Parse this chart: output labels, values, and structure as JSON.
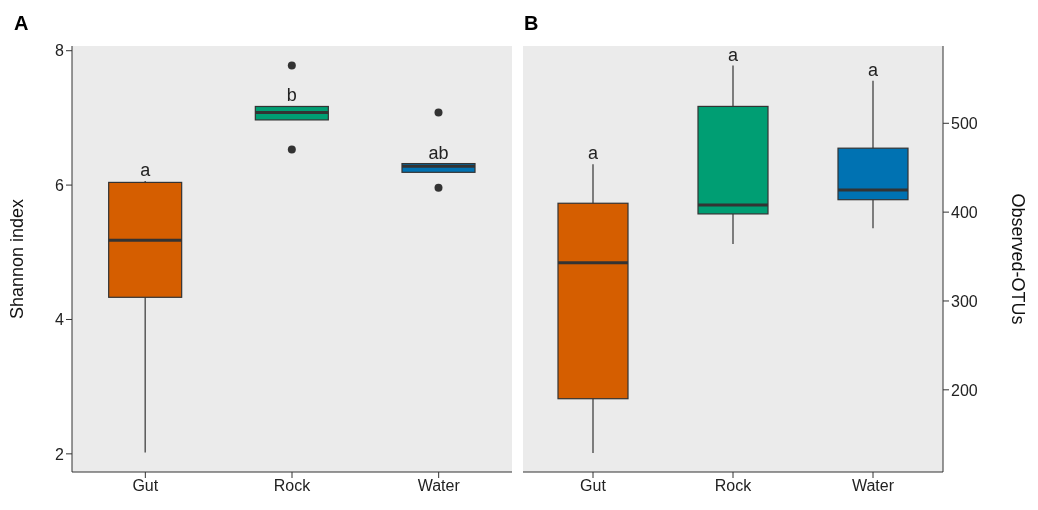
{
  "chart_data": [
    {
      "type": "box",
      "title": "A",
      "ylabel": "Shannon index",
      "categories": [
        "Gut",
        "Rock",
        "Water"
      ],
      "colors": [
        "#d55e00",
        "#009e73",
        "#0072b2"
      ],
      "ylim": [
        1.73,
        8.07
      ],
      "yticks": [
        2,
        4,
        6,
        8
      ],
      "grid": false,
      "boxes": [
        {
          "low": 2.02,
          "q1": 4.33,
          "median": 5.18,
          "q3": 6.04,
          "high": 6.06
        },
        {
          "low": 6.97,
          "q1": 6.97,
          "median": 7.08,
          "q3": 7.17,
          "high": 7.17,
          "outliers": [
            7.78,
            6.53
          ]
        },
        {
          "low": 6.19,
          "q1": 6.19,
          "median": 6.28,
          "q3": 6.32,
          "high": 6.32,
          "outliers": [
            7.08,
            5.96
          ]
        }
      ],
      "annotations": [
        "a",
        "b",
        "ab"
      ]
    },
    {
      "type": "box",
      "title": "B",
      "y2label": "Observed-OTUs",
      "categories": [
        "Gut",
        "Rock",
        "Water"
      ],
      "y2lim": [
        107.5,
        587
      ],
      "y2ticks": [
        200,
        300,
        400,
        500
      ],
      "grid": false,
      "series": [
        {
          "axis": "y2",
          "colors": [
            "#d55e00",
            "#009e73",
            "#0072b2"
          ],
          "boxes": [
            {
              "low": 129,
              "q1": 190,
              "median": 343,
              "q3": 410,
              "high": 454
            },
            {
              "low": 364,
              "q1": 398,
              "median": 408,
              "q3": 519,
              "high": 565
            },
            {
              "low": 382,
              "q1": 414,
              "median": 425,
              "q3": 472,
              "high": 548
            }
          ]
        }
      ],
      "annotations": [
        "a",
        "a",
        "a"
      ]
    }
  ]
}
